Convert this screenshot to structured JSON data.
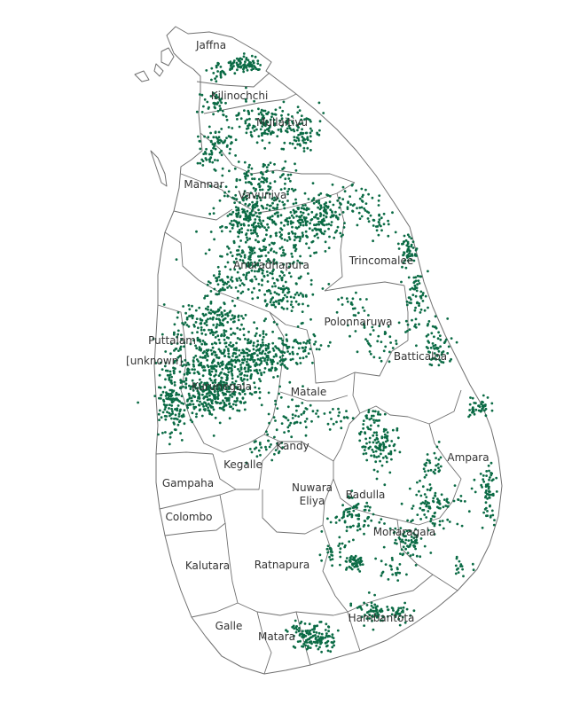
{
  "colors": {
    "dot": "#0b6b45",
    "boundary": "#707070",
    "background": "#ffffff",
    "label": "#333333"
  },
  "districts": [
    {
      "id": "jaffna",
      "name": "Jaffna"
    },
    {
      "id": "kilinochchi",
      "name": "Kilinochchi"
    },
    {
      "id": "mullaitivu",
      "name": "Mullaitivu"
    },
    {
      "id": "mannar",
      "name": "Mannar"
    },
    {
      "id": "vavuniya",
      "name": "Vavuniya"
    },
    {
      "id": "anuradhapura",
      "name": "Anuradhapura"
    },
    {
      "id": "trincomalee",
      "name": "Trincomalee"
    },
    {
      "id": "polonnaruwa",
      "name": "Polonnaruwa"
    },
    {
      "id": "puttalam",
      "name": "Puttalam"
    },
    {
      "id": "unknown",
      "name": "[unknown]"
    },
    {
      "id": "batticaloa",
      "name": "Batticaloa"
    },
    {
      "id": "kurunegala",
      "name": "Kurunegala"
    },
    {
      "id": "matale",
      "name": "Matale"
    },
    {
      "id": "kandy",
      "name": "Kandy"
    },
    {
      "id": "kegalle",
      "name": "Kegalle"
    },
    {
      "id": "ampara",
      "name": "Ampara"
    },
    {
      "id": "gampaha",
      "name": "Gampaha"
    },
    {
      "id": "nuwara-eliya",
      "name": "Nuwara\nEliya"
    },
    {
      "id": "badulla",
      "name": "Badulla"
    },
    {
      "id": "colombo",
      "name": "Colombo"
    },
    {
      "id": "monaragala",
      "name": "Monaragala"
    },
    {
      "id": "kalutara",
      "name": "Kalutara"
    },
    {
      "id": "ratnapura",
      "name": "Ratnapura"
    },
    {
      "id": "hambantota",
      "name": "Hambantota"
    },
    {
      "id": "galle",
      "name": "Galle"
    },
    {
      "id": "matara",
      "name": "Matara"
    }
  ]
}
